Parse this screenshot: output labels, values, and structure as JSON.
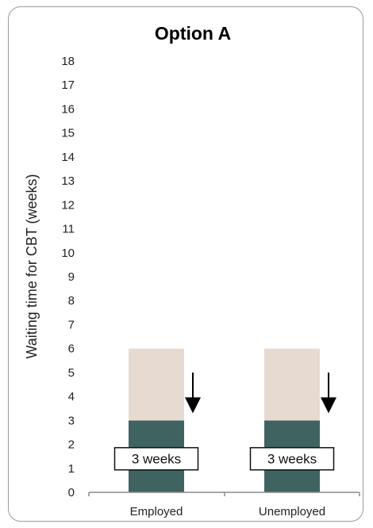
{
  "chart_data": {
    "type": "bar",
    "title": "Option A",
    "xlabel": "",
    "ylabel": "Waiting time for CBT (weeks)",
    "ylim": [
      0,
      18
    ],
    "yticks": [
      0,
      1,
      2,
      3,
      4,
      5,
      6,
      7,
      8,
      9,
      10,
      11,
      12,
      13,
      14,
      15,
      16,
      17,
      18
    ],
    "categories": [
      "Employed",
      "Unemployed"
    ],
    "series": [
      {
        "values": [
          3,
          3
        ],
        "color": "#3f6361"
      },
      {
        "values": [
          3,
          3
        ],
        "color": "#e7dbd1"
      }
    ],
    "annotations": {
      "box_labels": [
        "3 weeks",
        "3 weeks"
      ],
      "arrow": "down-arrow",
      "arrow_from": 5.0,
      "arrow_to": 3.3
    },
    "grid": false,
    "legend": "none"
  }
}
